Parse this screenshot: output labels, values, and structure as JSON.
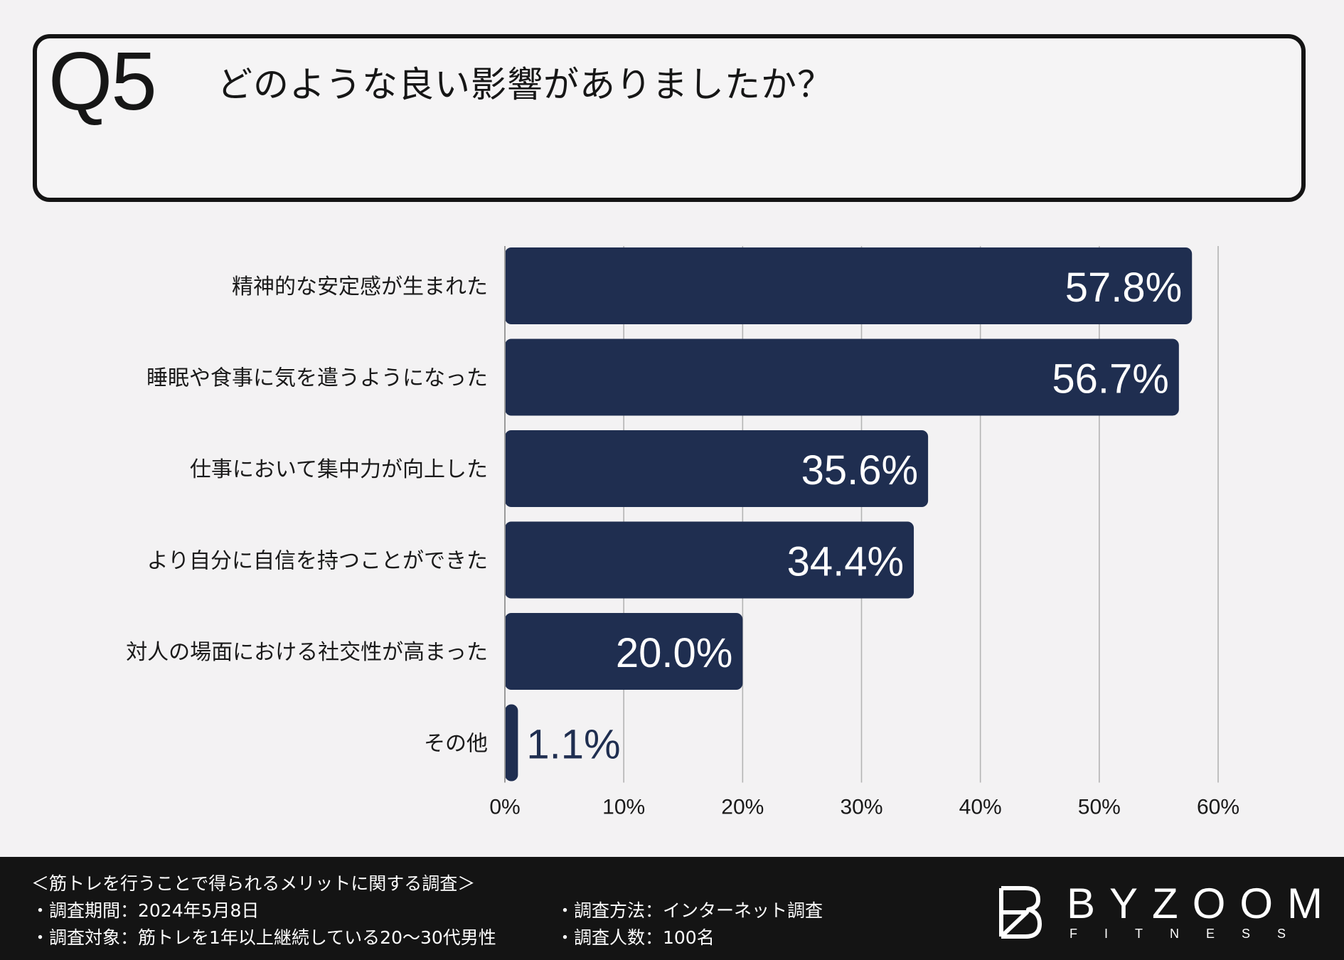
{
  "question": {
    "number": "Q5",
    "text": "どのような良い影響がありましたか？"
  },
  "chart_data": {
    "type": "bar",
    "orientation": "horizontal",
    "categories": [
      "精神的な安定感が生まれた",
      "睡眠や食事に気を遣うようになった",
      "仕事において集中力が向上した",
      "より自分に自信を持つことができた",
      "対人の場面における社交性が高まった",
      "その他"
    ],
    "values": [
      57.8,
      56.7,
      35.6,
      34.4,
      20.0,
      1.1
    ],
    "value_labels": [
      "57.8%",
      "56.7%",
      "35.6%",
      "34.4%",
      "20.0%",
      "1.1%"
    ],
    "xlim": [
      0,
      60
    ],
    "ticks": [
      0,
      10,
      20,
      30,
      40,
      50,
      60
    ],
    "tick_labels": [
      "0%",
      "10%",
      "20%",
      "30%",
      "40%",
      "50%",
      "60%"
    ],
    "grid": true,
    "title": "",
    "xlabel": "",
    "ylabel": "",
    "bar_color": "#1f2e50",
    "grid_color": "#b4b4b4"
  },
  "footer": {
    "survey_title": "＜筋トレを行うことで得られるメリットに関する調査＞",
    "period": "・調査期間：2024年5月8日",
    "target": "・調査対象：筋トレを1年以上継続している20〜30代男性",
    "method": "・調査方法：インターネット調査",
    "count": "・調査人数：100名",
    "brand_name": "BYZOOM",
    "brand_sub": "FITNESS"
  }
}
